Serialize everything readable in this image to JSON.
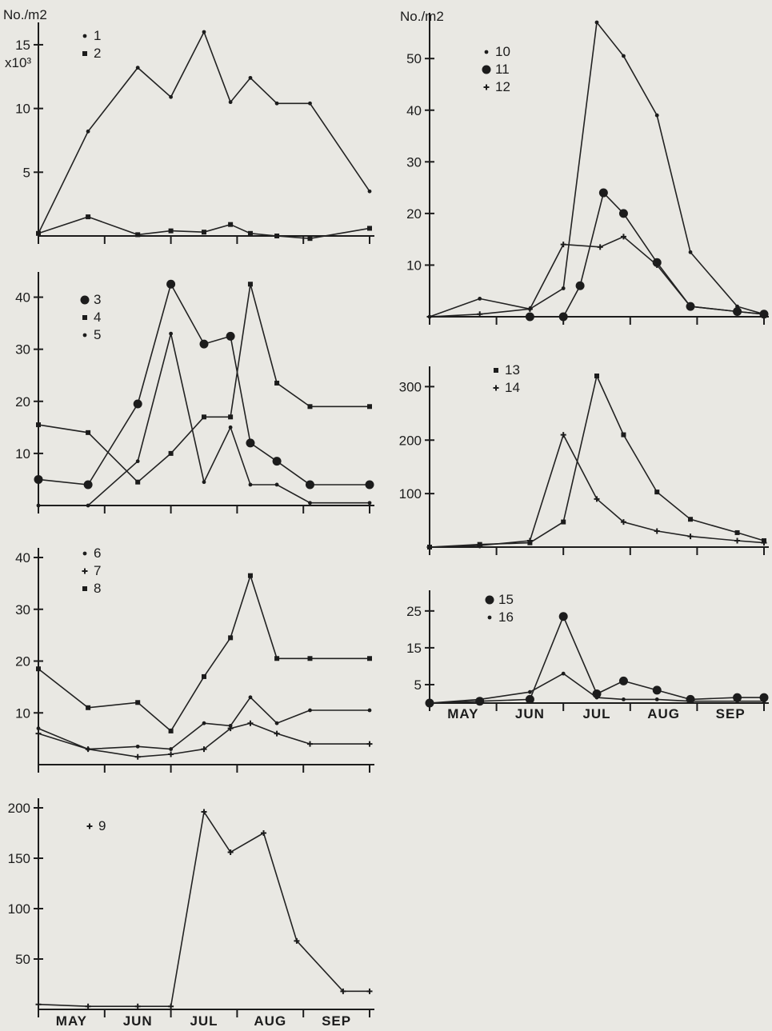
{
  "months": [
    "MAY",
    "JUN",
    "JUL",
    "AUG",
    "SEP"
  ],
  "chart_data": [
    {
      "id": "p1",
      "type": "line",
      "ylabel": "No./m2",
      "scale_label": "x10³",
      "ylim": [
        0,
        16
      ],
      "yticks": [
        5,
        10,
        15
      ],
      "xlim": [
        0,
        5
      ],
      "month_labels": false,
      "series": [
        {
          "name": "1",
          "marker": "dot",
          "x": [
            0,
            0.75,
            1.5,
            2.0,
            2.5,
            2.9,
            3.2,
            3.6,
            4.1,
            5.0
          ],
          "y": [
            0.2,
            8.2,
            13.2,
            10.9,
            16.0,
            10.5,
            12.4,
            10.4,
            10.4,
            3.5
          ]
        },
        {
          "name": "2",
          "marker": "square",
          "x": [
            0,
            0.75,
            1.5,
            2.0,
            2.5,
            2.9,
            3.2,
            3.6,
            4.1,
            5.0
          ],
          "y": [
            0.2,
            1.5,
            0.1,
            0.4,
            0.3,
            0.9,
            0.2,
            0.0,
            -0.2,
            0.6
          ]
        }
      ]
    },
    {
      "id": "p2",
      "type": "line",
      "ylabel": "No./m2",
      "ylim": [
        0,
        57
      ],
      "yticks": [
        10,
        20,
        30,
        40,
        50
      ],
      "xlim": [
        0,
        5
      ],
      "month_labels": false,
      "series": [
        {
          "name": "10",
          "marker": "dot",
          "x": [
            0,
            0.75,
            1.5,
            2.0,
            2.5,
            2.9,
            3.4,
            3.9,
            4.6,
            5.0
          ],
          "y": [
            0,
            3.5,
            1.5,
            5.5,
            57,
            50.5,
            39,
            12.5,
            2,
            0.5
          ]
        },
        {
          "name": "11",
          "marker": "circle",
          "x": [
            1.5,
            2.0,
            2.25,
            2.6,
            2.9,
            3.4,
            3.9,
            4.6,
            5.0
          ],
          "y": [
            0,
            0,
            6,
            24,
            20,
            10.5,
            2,
            1,
            0.5
          ]
        },
        {
          "name": "12",
          "marker": "cross",
          "x": [
            0,
            0.75,
            1.5,
            2.0,
            2.55,
            2.9,
            3.4,
            3.9,
            4.6,
            5.0
          ],
          "y": [
            0,
            0.5,
            1.5,
            14,
            13.5,
            15.5,
            10,
            2,
            1,
            0.5
          ]
        }
      ]
    },
    {
      "id": "p3",
      "type": "line",
      "ylim": [
        0,
        43
      ],
      "yticks": [
        10,
        20,
        30,
        40
      ],
      "xlim": [
        0,
        5
      ],
      "month_labels": false,
      "series": [
        {
          "name": "3",
          "marker": "circle",
          "x": [
            0,
            0.75,
            1.5,
            2.0,
            2.5,
            2.9,
            3.2,
            3.6,
            4.1,
            5.0
          ],
          "y": [
            5,
            4,
            19.5,
            42.5,
            31,
            32.5,
            12,
            8.5,
            4,
            4
          ]
        },
        {
          "name": "4",
          "marker": "square",
          "x": [
            0,
            0.75,
            1.5,
            2.0,
            2.5,
            2.9,
            3.2,
            3.6,
            4.1,
            5.0
          ],
          "y": [
            15.5,
            14,
            4.5,
            10,
            17,
            17,
            42.5,
            23.5,
            19,
            19
          ]
        },
        {
          "name": "5",
          "marker": "dot",
          "x": [
            0,
            0.75,
            1.5,
            2.0,
            2.5,
            2.9,
            3.2,
            3.6,
            4.1,
            5.0
          ],
          "y": [
            0,
            0,
            8.5,
            33,
            4.5,
            15,
            4,
            4,
            0.5,
            0.5
          ]
        }
      ]
    },
    {
      "id": "p4",
      "type": "line",
      "ylim": [
        0,
        320
      ],
      "yticks": [
        100,
        200,
        300
      ],
      "xlim": [
        0,
        5
      ],
      "month_labels": false,
      "series": [
        {
          "name": "13",
          "marker": "square",
          "x": [
            0,
            0.75,
            1.5,
            2.0,
            2.5,
            2.9,
            3.4,
            3.9,
            4.6,
            5.0
          ],
          "y": [
            0,
            5,
            8,
            47,
            320,
            210,
            103,
            52,
            27,
            12
          ]
        },
        {
          "name": "14",
          "marker": "cross",
          "x": [
            0,
            0.75,
            1.5,
            2.0,
            2.5,
            2.9,
            3.4,
            3.9,
            4.6,
            5.0
          ],
          "y": [
            0,
            3,
            12,
            210,
            90,
            47,
            30,
            20,
            12,
            8
          ]
        }
      ]
    },
    {
      "id": "p5",
      "type": "line",
      "ylim": [
        0,
        40
      ],
      "yticks": [
        10,
        20,
        30,
        40
      ],
      "xlim": [
        0,
        5
      ],
      "month_labels": false,
      "series": [
        {
          "name": "6",
          "marker": "dot",
          "x": [
            0,
            0.75,
            1.5,
            2.0,
            2.5,
            2.9,
            3.2,
            3.6,
            4.1,
            5.0
          ],
          "y": [
            7,
            3,
            3.5,
            3,
            8,
            7.5,
            13,
            8,
            10.5,
            10.5
          ]
        },
        {
          "name": "7",
          "marker": "cross",
          "x": [
            0,
            0.75,
            1.5,
            2.0,
            2.5,
            2.9,
            3.2,
            3.6,
            4.1,
            5.0
          ],
          "y": [
            6,
            3,
            1.5,
            2,
            3,
            7,
            8,
            6,
            4,
            4
          ]
        },
        {
          "name": "8",
          "marker": "square",
          "x": [
            0,
            0.75,
            1.5,
            2.0,
            2.5,
            2.9,
            3.2,
            3.6,
            4.1,
            5.0
          ],
          "y": [
            18.5,
            11,
            12,
            6.5,
            17,
            24.5,
            36.5,
            20.5,
            20.5,
            20.5
          ]
        }
      ]
    },
    {
      "id": "p6",
      "type": "line",
      "ylim": [
        0,
        28
      ],
      "yticks": [
        5,
        15,
        25
      ],
      "xlim": [
        0,
        5
      ],
      "month_labels": true,
      "series": [
        {
          "name": "15",
          "marker": "circle",
          "x": [
            0,
            0.75,
            1.5,
            2.0,
            2.5,
            2.9,
            3.4,
            3.9,
            4.6,
            5.0
          ],
          "y": [
            0,
            0.5,
            1,
            23.5,
            2.5,
            6,
            3.5,
            1,
            1.5,
            1.5
          ]
        },
        {
          "name": "16",
          "marker": "dot",
          "x": [
            0,
            0.75,
            1.5,
            2.0,
            2.5,
            2.9,
            3.4,
            3.9,
            4.6,
            5.0
          ],
          "y": [
            0,
            1,
            3,
            8,
            1.5,
            1,
            1,
            0.5,
            0.5,
            0.5
          ]
        }
      ]
    },
    {
      "id": "p7",
      "type": "line",
      "ylim": [
        0,
        200
      ],
      "yticks": [
        50,
        100,
        150,
        200
      ],
      "xlim": [
        0,
        5
      ],
      "month_labels": true,
      "series": [
        {
          "name": "9",
          "marker": "cross",
          "x": [
            0,
            0.75,
            1.5,
            2.0,
            2.5,
            2.9,
            3.4,
            3.9,
            4.6,
            5.0
          ],
          "y": [
            5,
            3,
            3,
            3,
            196,
            156,
            175,
            68,
            18,
            18
          ]
        }
      ]
    }
  ]
}
